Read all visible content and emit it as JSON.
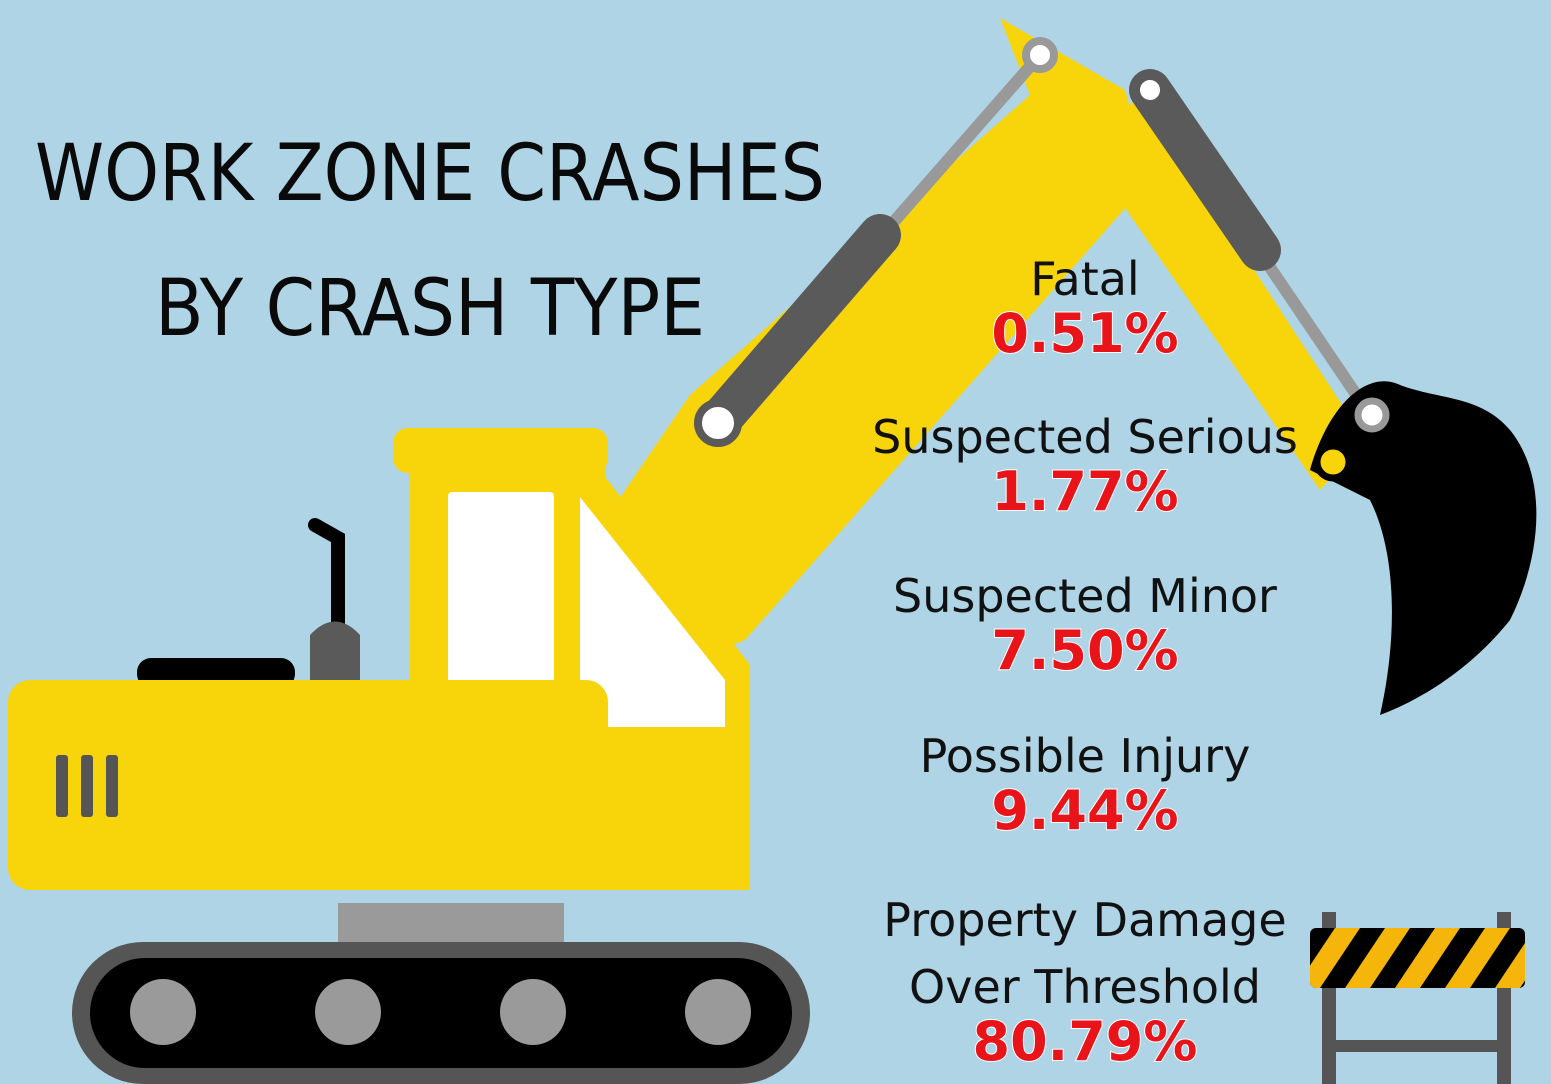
{
  "title": [
    "WORK ZONE CRASHES",
    "BY CRASH TYPE"
  ],
  "items": [
    {
      "label": [
        "Fatal"
      ],
      "value": "0.51%"
    },
    {
      "label": [
        "Suspected Serious"
      ],
      "value": "1.77%"
    },
    {
      "label": [
        "Suspected Minor"
      ],
      "value": "7.50%"
    },
    {
      "label": [
        "Possible Injury"
      ],
      "value": "9.44%"
    },
    {
      "label": [
        "Property Damage",
        "Over Threshold"
      ],
      "value": "80.79%"
    }
  ]
}
